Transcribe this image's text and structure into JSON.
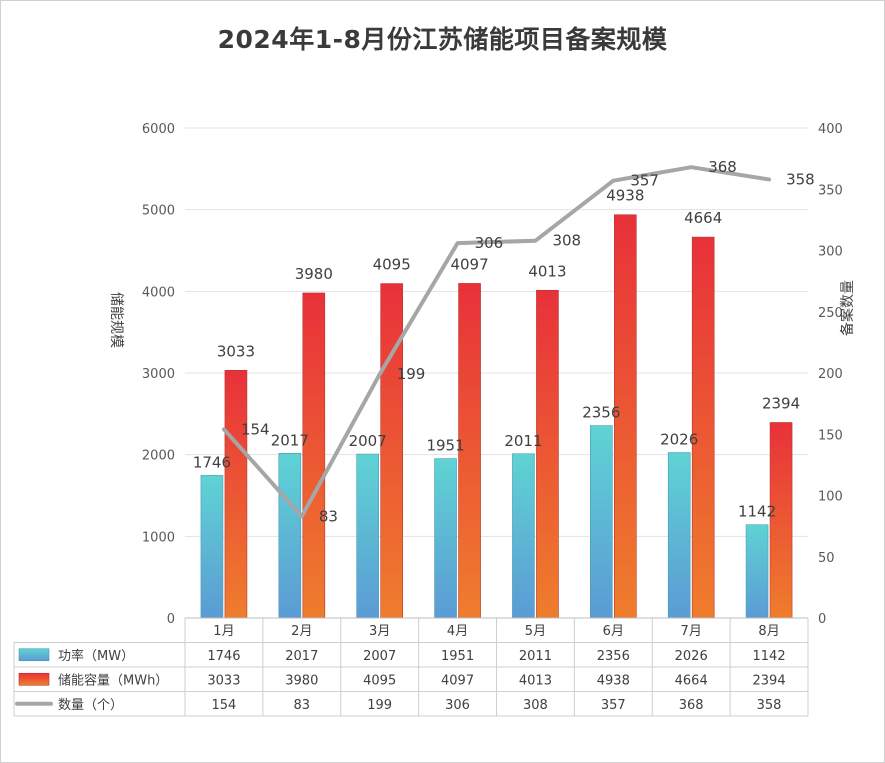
{
  "title": "2024年1-8月份江苏储能项目备案规模",
  "chart_data": {
    "type": "bar",
    "title": "2024年1-8月份江苏储能项目备案规模",
    "categories": [
      "1月",
      "2月",
      "3月",
      "4月",
      "5月",
      "6月",
      "7月",
      "8月"
    ],
    "ylabel": "储能规模",
    "y2label": "备案数量",
    "ylim": [
      0,
      6000
    ],
    "y2lim": [
      0,
      400
    ],
    "yticks": [
      0,
      1000,
      2000,
      3000,
      4000,
      5000,
      6000
    ],
    "y2ticks": [
      0,
      50,
      100,
      150,
      200,
      250,
      300,
      350,
      400
    ],
    "grid": true,
    "legend": "data-table",
    "series": [
      {
        "name": "功率（MW）",
        "kind": "bar",
        "axis": "left",
        "color_top": "#5fd3d3",
        "color_bottom": "#5b9bd5",
        "values": [
          1746,
          2017,
          2007,
          1951,
          2011,
          2356,
          2026,
          1142
        ]
      },
      {
        "name": "储能容量（MWh）",
        "kind": "bar",
        "axis": "left",
        "color_top": "#e8313a",
        "color_bottom": "#ef7d2d",
        "values": [
          3033,
          3980,
          4095,
          4097,
          4013,
          4938,
          4664,
          2394
        ]
      },
      {
        "name": "数量（个）",
        "kind": "line",
        "axis": "right",
        "color": "#a6a6a6",
        "values": [
          154,
          83,
          199,
          306,
          308,
          357,
          368,
          358
        ]
      }
    ]
  }
}
